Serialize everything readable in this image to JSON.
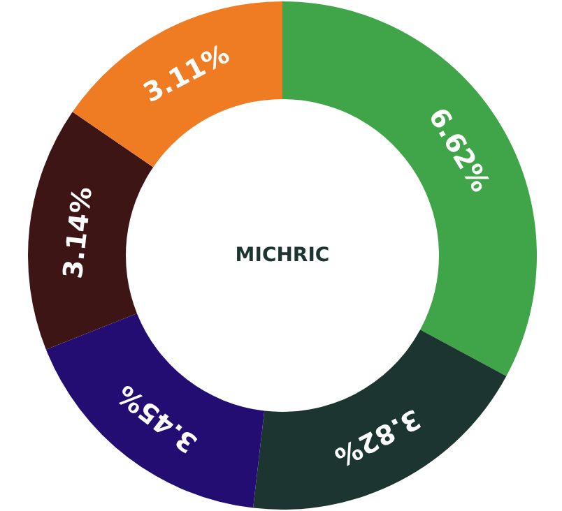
{
  "chart_data": {
    "type": "donut",
    "title": "MICHRIC",
    "categories": [
      null,
      null,
      null,
      null,
      null
    ],
    "values": [
      6.62,
      3.82,
      3.45,
      3.14,
      3.11
    ],
    "value_labels": [
      "6.62%",
      "3.82%",
      "3.45%",
      "3.14%",
      "3.11%"
    ],
    "colors": [
      "#40a548",
      "#1c3531",
      "#230d72",
      "#3d1515",
      "#ef7b23"
    ]
  }
}
